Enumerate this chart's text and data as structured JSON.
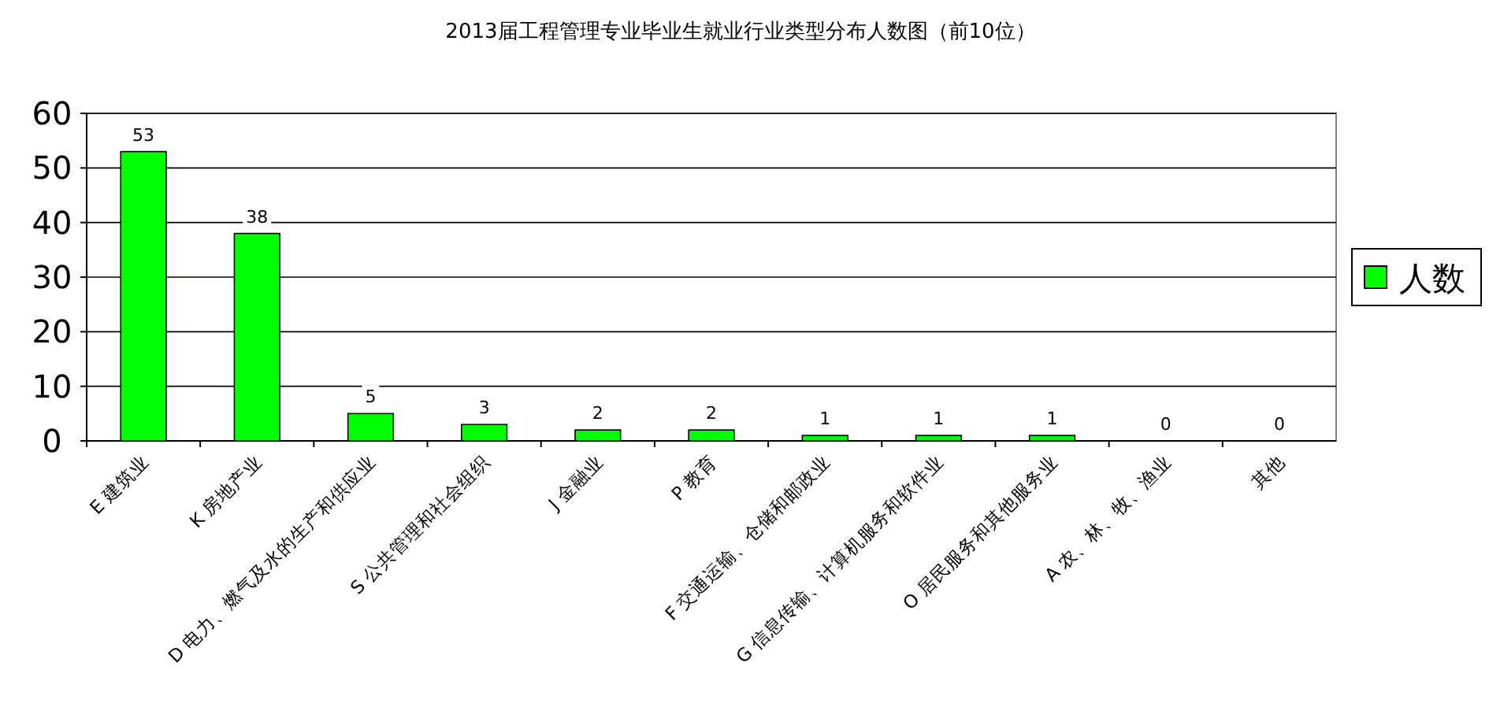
{
  "chart_data": {
    "type": "bar",
    "title": "2013届工程管理专业毕业生就业行业类型分布人数图（前10位）",
    "categories": [
      "E 建筑业",
      "K 房地产业",
      "D 电力、燃气及水的生产和供应业",
      "S 公共管理和社会组织",
      "J 金融业",
      "P 教育",
      "F 交通运输、仓储和邮政业",
      "G 信息传输、计算机服务和软件业",
      "O 居民服务和其他服务业",
      "A 农、林、牧、渔业",
      "其他"
    ],
    "series": [
      {
        "name": "人数",
        "color": "#00ff00",
        "values": [
          53,
          38,
          5,
          3,
          2,
          2,
          1,
          1,
          1,
          0,
          0
        ]
      }
    ],
    "ylim": [
      0,
      60
    ],
    "yticks": [
      0,
      10,
      20,
      30,
      40,
      50,
      60
    ],
    "grid": "y",
    "legend": "right",
    "data_labels": true
  }
}
